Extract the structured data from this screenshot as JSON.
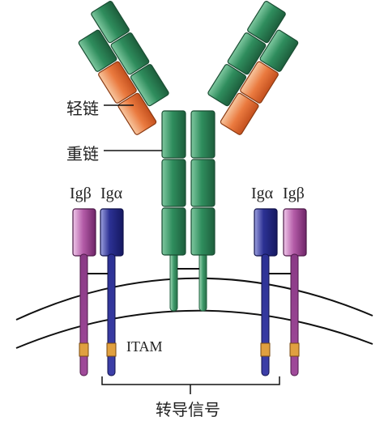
{
  "labels": {
    "light_chain": "轻链",
    "heavy_chain": "重链",
    "ig_beta_left": "Igβ",
    "ig_alpha_left": "Igα",
    "ig_alpha_right": "Igα",
    "ig_beta_right": "Igβ",
    "itam": "ITAM",
    "signal": "转导信号"
  },
  "colors": {
    "heavy_chain": "#2e8b5a",
    "light_chain_constant": "#e9733a",
    "light_chain_variable": "#2e8b5a",
    "ig_alpha": "#262a8c",
    "ig_beta": "#a04a9a",
    "itam": "#d99a3a",
    "membrane": "#111111"
  }
}
